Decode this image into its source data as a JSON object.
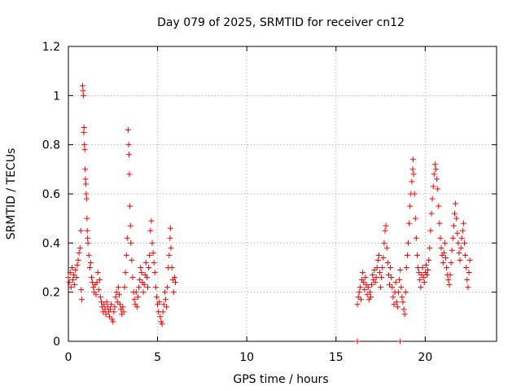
{
  "chart_data": {
    "type": "scatter",
    "title": "Day 079 of 2025, SRMTID for receiver cn12",
    "xlabel": "GPS time / hours",
    "ylabel": "SRMTID / TECUs",
    "xlim": [
      0,
      24
    ],
    "ylim": [
      0,
      1.2
    ],
    "x_ticks": [
      0,
      5,
      10,
      15,
      20
    ],
    "x_tick_labels": [
      "0",
      "5",
      "10",
      "15",
      "20"
    ],
    "y_ticks": [
      0,
      0.2,
      0.4,
      0.6,
      0.8,
      1.0,
      1.2
    ],
    "y_tick_labels": [
      "0",
      "0.2",
      "0.4",
      "0.6",
      "0.8",
      "1",
      "1.2"
    ],
    "grid": true,
    "marker": "+",
    "marker_color": "#ff0000",
    "series": [
      {
        "name": "SRMTID",
        "points": [
          [
            0.0,
            0.26
          ],
          [
            0.05,
            0.24
          ],
          [
            0.1,
            0.28
          ],
          [
            0.15,
            0.22
          ],
          [
            0.2,
            0.3
          ],
          [
            0.25,
            0.25
          ],
          [
            0.3,
            0.27
          ],
          [
            0.35,
            0.23
          ],
          [
            0.4,
            0.29
          ],
          [
            0.45,
            0.26
          ],
          [
            0.5,
            0.31
          ],
          [
            0.55,
            0.33
          ],
          [
            0.6,
            0.36
          ],
          [
            0.65,
            0.38
          ],
          [
            0.7,
            0.45
          ],
          [
            0.72,
            0.21
          ],
          [
            0.75,
            0.17
          ],
          [
            0.8,
            1.04
          ],
          [
            0.82,
            1.02
          ],
          [
            0.84,
            1.0
          ],
          [
            0.86,
            0.85
          ],
          [
            0.88,
            0.87
          ],
          [
            0.9,
            0.8
          ],
          [
            0.92,
            0.78
          ],
          [
            0.94,
            0.7
          ],
          [
            0.96,
            0.66
          ],
          [
            0.98,
            0.64
          ],
          [
            1.0,
            0.6
          ],
          [
            1.02,
            0.58
          ],
          [
            1.04,
            0.5
          ],
          [
            1.06,
            0.45
          ],
          [
            1.08,
            0.42
          ],
          [
            1.1,
            0.4
          ],
          [
            1.15,
            0.35
          ],
          [
            1.2,
            0.3
          ],
          [
            1.25,
            0.32
          ],
          [
            1.3,
            0.26
          ],
          [
            1.35,
            0.24
          ],
          [
            1.4,
            0.22
          ],
          [
            1.45,
            0.2
          ],
          [
            1.5,
            0.23
          ],
          [
            1.55,
            0.19
          ],
          [
            1.6,
            0.24
          ],
          [
            1.65,
            0.28
          ],
          [
            1.7,
            0.21
          ],
          [
            1.75,
            0.25
          ],
          [
            1.8,
            0.18
          ],
          [
            1.85,
            0.16
          ],
          [
            1.9,
            0.14
          ],
          [
            1.95,
            0.12
          ],
          [
            2.0,
            0.15
          ],
          [
            2.05,
            0.13
          ],
          [
            2.1,
            0.11
          ],
          [
            2.15,
            0.16
          ],
          [
            2.2,
            0.14
          ],
          [
            2.25,
            0.12
          ],
          [
            2.3,
            0.1
          ],
          [
            2.35,
            0.13
          ],
          [
            2.4,
            0.15
          ],
          [
            2.45,
            0.09
          ],
          [
            2.5,
            0.08
          ],
          [
            2.55,
            0.12
          ],
          [
            2.6,
            0.14
          ],
          [
            2.65,
            0.18
          ],
          [
            2.7,
            0.2
          ],
          [
            2.75,
            0.16
          ],
          [
            2.8,
            0.22
          ],
          [
            2.85,
            0.19
          ],
          [
            2.9,
            0.15
          ],
          [
            2.95,
            0.13
          ],
          [
            3.0,
            0.11
          ],
          [
            3.05,
            0.14
          ],
          [
            3.1,
            0.12
          ],
          [
            3.15,
            0.22
          ],
          [
            3.2,
            0.28
          ],
          [
            3.25,
            0.35
          ],
          [
            3.3,
            0.42
          ],
          [
            3.35,
            0.86
          ],
          [
            3.38,
            0.8
          ],
          [
            3.4,
            0.76
          ],
          [
            3.42,
            0.68
          ],
          [
            3.45,
            0.55
          ],
          [
            3.48,
            0.47
          ],
          [
            3.5,
            0.4
          ],
          [
            3.55,
            0.33
          ],
          [
            3.6,
            0.26
          ],
          [
            3.65,
            0.2
          ],
          [
            3.7,
            0.17
          ],
          [
            3.75,
            0.15
          ],
          [
            3.8,
            0.2
          ],
          [
            3.85,
            0.14
          ],
          [
            3.9,
            0.18
          ],
          [
            3.95,
            0.22
          ],
          [
            4.0,
            0.25
          ],
          [
            4.05,
            0.3
          ],
          [
            4.1,
            0.28
          ],
          [
            4.15,
            0.24
          ],
          [
            4.2,
            0.2
          ],
          [
            4.25,
            0.23
          ],
          [
            4.3,
            0.27
          ],
          [
            4.35,
            0.32
          ],
          [
            4.4,
            0.26
          ],
          [
            4.45,
            0.22
          ],
          [
            4.5,
            0.3
          ],
          [
            4.55,
            0.35
          ],
          [
            4.6,
            0.45
          ],
          [
            4.65,
            0.49
          ],
          [
            4.7,
            0.4
          ],
          [
            4.75,
            0.36
          ],
          [
            4.8,
            0.32
          ],
          [
            4.85,
            0.28
          ],
          [
            4.9,
            0.22
          ],
          [
            4.95,
            0.18
          ],
          [
            5.0,
            0.15
          ],
          [
            5.05,
            0.12
          ],
          [
            5.1,
            0.16
          ],
          [
            5.15,
            0.1
          ],
          [
            5.2,
            0.08
          ],
          [
            5.25,
            0.07
          ],
          [
            5.3,
            0.12
          ],
          [
            5.35,
            0.15
          ],
          [
            5.4,
            0.2
          ],
          [
            5.45,
            0.17
          ],
          [
            5.5,
            0.14
          ],
          [
            5.55,
            0.22
          ],
          [
            5.6,
            0.3
          ],
          [
            5.65,
            0.35
          ],
          [
            5.7,
            0.42
          ],
          [
            5.72,
            0.46
          ],
          [
            5.75,
            0.38
          ],
          [
            5.8,
            0.3
          ],
          [
            5.85,
            0.25
          ],
          [
            5.9,
            0.2
          ],
          [
            5.95,
            0.26
          ],
          [
            6.0,
            0.24
          ],
          [
            16.2,
            0.15
          ],
          [
            16.25,
            0.18
          ],
          [
            16.3,
            0.2
          ],
          [
            16.35,
            0.22
          ],
          [
            16.4,
            0.17
          ],
          [
            16.45,
            0.25
          ],
          [
            16.5,
            0.28
          ],
          [
            16.55,
            0.24
          ],
          [
            16.6,
            0.21
          ],
          [
            16.65,
            0.26
          ],
          [
            16.7,
            0.23
          ],
          [
            16.75,
            0.19
          ],
          [
            16.8,
            0.22
          ],
          [
            16.85,
            0.17
          ],
          [
            16.9,
            0.2
          ],
          [
            16.95,
            0.18
          ],
          [
            17.0,
            0.23
          ],
          [
            17.05,
            0.27
          ],
          [
            17.1,
            0.25
          ],
          [
            17.15,
            0.29
          ],
          [
            17.2,
            0.24
          ],
          [
            17.25,
            0.26
          ],
          [
            17.3,
            0.3
          ],
          [
            17.35,
            0.33
          ],
          [
            17.4,
            0.35
          ],
          [
            17.45,
            0.28
          ],
          [
            17.5,
            0.22
          ],
          [
            17.55,
            0.26
          ],
          [
            17.6,
            0.3
          ],
          [
            17.65,
            0.34
          ],
          [
            17.7,
            0.4
          ],
          [
            17.75,
            0.45
          ],
          [
            17.8,
            0.47
          ],
          [
            17.85,
            0.38
          ],
          [
            17.9,
            0.32
          ],
          [
            17.95,
            0.27
          ],
          [
            18.0,
            0.23
          ],
          [
            18.05,
            0.3
          ],
          [
            18.1,
            0.26
          ],
          [
            18.15,
            0.22
          ],
          [
            18.2,
            0.18
          ],
          [
            18.25,
            0.15
          ],
          [
            18.3,
            0.2
          ],
          [
            18.35,
            0.24
          ],
          [
            18.4,
            0.16
          ],
          [
            18.45,
            0.14
          ],
          [
            18.5,
            0.2
          ],
          [
            18.55,
            0.25
          ],
          [
            18.6,
            0.29
          ],
          [
            18.65,
            0.22
          ],
          [
            18.7,
            0.18
          ],
          [
            18.75,
            0.16
          ],
          [
            18.8,
            0.13
          ],
          [
            18.85,
            0.11
          ],
          [
            18.9,
            0.2
          ],
          [
            18.95,
            0.3
          ],
          [
            19.0,
            0.35
          ],
          [
            19.05,
            0.4
          ],
          [
            19.1,
            0.48
          ],
          [
            19.15,
            0.55
          ],
          [
            19.2,
            0.6
          ],
          [
            19.25,
            0.65
          ],
          [
            19.3,
            0.7
          ],
          [
            19.32,
            0.74
          ],
          [
            19.35,
            0.68
          ],
          [
            19.4,
            0.6
          ],
          [
            19.45,
            0.5
          ],
          [
            19.5,
            0.42
          ],
          [
            19.55,
            0.35
          ],
          [
            19.6,
            0.3
          ],
          [
            19.65,
            0.28
          ],
          [
            19.7,
            0.25
          ],
          [
            19.75,
            0.22
          ],
          [
            19.8,
            0.27
          ],
          [
            19.85,
            0.3
          ],
          [
            19.9,
            0.26
          ],
          [
            19.95,
            0.24
          ],
          [
            20.0,
            0.28
          ],
          [
            20.05,
            0.31
          ],
          [
            20.1,
            0.27
          ],
          [
            20.15,
            0.29
          ],
          [
            20.2,
            0.33
          ],
          [
            20.25,
            0.38
          ],
          [
            20.3,
            0.45
          ],
          [
            20.35,
            0.52
          ],
          [
            20.4,
            0.58
          ],
          [
            20.45,
            0.63
          ],
          [
            20.5,
            0.68
          ],
          [
            20.55,
            0.72
          ],
          [
            20.6,
            0.7
          ],
          [
            20.65,
            0.66
          ],
          [
            20.7,
            0.62
          ],
          [
            20.75,
            0.55
          ],
          [
            20.8,
            0.48
          ],
          [
            20.85,
            0.42
          ],
          [
            20.9,
            0.38
          ],
          [
            20.95,
            0.35
          ],
          [
            21.0,
            0.32
          ],
          [
            21.05,
            0.36
          ],
          [
            21.1,
            0.4
          ],
          [
            21.15,
            0.34
          ],
          [
            21.2,
            0.3
          ],
          [
            21.25,
            0.27
          ],
          [
            21.3,
            0.25
          ],
          [
            21.35,
            0.23
          ],
          [
            21.4,
            0.27
          ],
          [
            21.45,
            0.32
          ],
          [
            21.5,
            0.37
          ],
          [
            21.55,
            0.42
          ],
          [
            21.6,
            0.47
          ],
          [
            21.65,
            0.52
          ],
          [
            21.7,
            0.56
          ],
          [
            21.75,
            0.5
          ],
          [
            21.8,
            0.44
          ],
          [
            21.85,
            0.4
          ],
          [
            21.9,
            0.36
          ],
          [
            21.95,
            0.33
          ],
          [
            22.0,
            0.38
          ],
          [
            22.05,
            0.42
          ],
          [
            22.1,
            0.45
          ],
          [
            22.15,
            0.48
          ],
          [
            22.2,
            0.4
          ],
          [
            22.25,
            0.35
          ],
          [
            22.3,
            0.3
          ],
          [
            22.35,
            0.25
          ],
          [
            22.4,
            0.22
          ],
          [
            22.45,
            0.28
          ],
          [
            22.5,
            0.33
          ],
          [
            16.2,
            0.0
          ],
          [
            18.6,
            0.0
          ]
        ]
      }
    ]
  }
}
